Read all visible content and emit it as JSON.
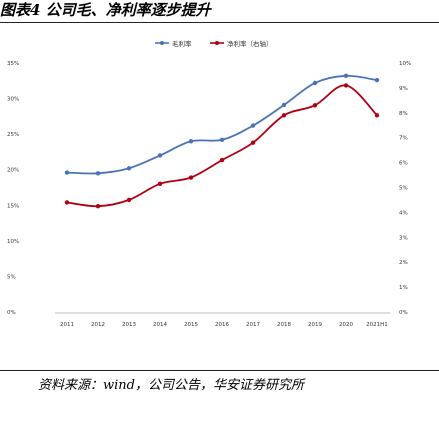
{
  "figure": {
    "title": "图表4 公司毛、净利率逐步提升",
    "source": "资料来源：wind，公司公告，华安证券研究所"
  },
  "chart_data": {
    "type": "line",
    "categories": [
      "2011",
      "2012",
      "2013",
      "2014",
      "2015",
      "2016",
      "2017",
      "2018",
      "2019",
      "2020",
      "2021H1"
    ],
    "series": [
      {
        "name": "毛利率",
        "axis": "left",
        "color": "#4a73b5",
        "values": [
          19.6,
          19.5,
          20.2,
          22.0,
          24.0,
          24.2,
          26.2,
          29.1,
          32.2,
          33.2,
          32.6
        ]
      },
      {
        "name": "净利率（右轴）",
        "axis": "right",
        "color": "#b00012",
        "values": [
          4.4,
          4.25,
          4.5,
          5.15,
          5.4,
          6.1,
          6.8,
          7.9,
          8.3,
          9.1,
          7.9
        ]
      }
    ],
    "left_axis": {
      "ticks": [
        "0%",
        "5%",
        "10%",
        "15%",
        "20%",
        "25%",
        "30%",
        "35%"
      ],
      "ylim": [
        0,
        35
      ]
    },
    "right_axis": {
      "ticks": [
        "0%",
        "1%",
        "2%",
        "3%",
        "4%",
        "5%",
        "6%",
        "7%",
        "8%",
        "9%",
        "10%"
      ],
      "ylim": [
        0,
        10
      ]
    },
    "legend_position": "top-center",
    "grid": false
  }
}
